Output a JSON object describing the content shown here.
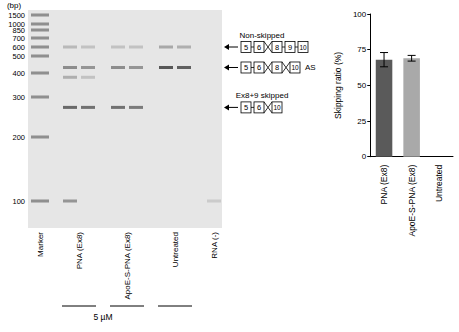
{
  "gel": {
    "size_label": "(bp)",
    "marker": [
      1500,
      1000,
      850,
      700,
      600,
      500,
      400,
      300,
      200,
      100
    ],
    "groups": [
      {
        "label": "Marker",
        "lanes": [
          {
            "bands": []
          }
        ]
      },
      {
        "label": "PNA (Ex8)",
        "dose": "5 µM",
        "lanes": [
          {
            "bands": [
              {
                "bp": 600,
                "intensity": 0.25
              },
              {
                "bp": 430,
                "intensity": 0.5
              },
              {
                "bp": 380,
                "intensity": 0.3
              },
              {
                "bp": 270,
                "intensity": 0.7
              },
              {
                "bp": 100,
                "intensity": 0.45
              }
            ]
          },
          {
            "bands": [
              {
                "bp": 600,
                "intensity": 0.2
              },
              {
                "bp": 430,
                "intensity": 0.45
              },
              {
                "bp": 380,
                "intensity": 0.2
              },
              {
                "bp": 270,
                "intensity": 0.65
              }
            ]
          }
        ]
      },
      {
        "label": "ApoE-S-PNA (Ex8)",
        "dose": "5 µM",
        "lanes": [
          {
            "bands": [
              {
                "bp": 600,
                "intensity": 0.2
              },
              {
                "bp": 430,
                "intensity": 0.5
              },
              {
                "bp": 270,
                "intensity": 0.65
              }
            ]
          },
          {
            "bands": [
              {
                "bp": 600,
                "intensity": 0.2
              },
              {
                "bp": 430,
                "intensity": 0.45
              },
              {
                "bp": 270,
                "intensity": 0.6
              }
            ]
          }
        ]
      },
      {
        "label": "Untreated",
        "lanes": [
          {
            "bands": [
              {
                "bp": 600,
                "intensity": 0.35
              },
              {
                "bp": 430,
                "intensity": 0.8
              }
            ]
          },
          {
            "bands": [
              {
                "bp": 600,
                "intensity": 0.3
              },
              {
                "bp": 430,
                "intensity": 0.75
              }
            ]
          }
        ]
      },
      {
        "label": "RNA (-)",
        "lanes": [
          {
            "bands": [
              {
                "bp": 100,
                "intensity": 0.15
              }
            ]
          }
        ]
      }
    ],
    "products": [
      {
        "name": "Non-skipped",
        "exons": [
          "5",
          "6",
          "8",
          "9",
          "10"
        ],
        "bp": 600
      },
      {
        "name": "AS",
        "exons": [
          "5",
          "6",
          "8",
          "10"
        ],
        "bp": 430
      },
      {
        "name": "Ex8+9 skipped",
        "exons": [
          "5",
          "6",
          "10"
        ],
        "bp": 270
      }
    ]
  },
  "chart_data": {
    "type": "bar",
    "categories": [
      "PNA (Ex8)",
      "ApoE-S-PNA (Ex8)",
      "Untreated"
    ],
    "values": [
      68,
      69,
      0
    ],
    "errors": [
      5,
      2,
      0
    ],
    "colors": [
      "#5a5a5a",
      "#a9a9a9",
      "#222222"
    ],
    "ylabel": "Skipping ratio (%)",
    "ylim": [
      0,
      100
    ],
    "yticks": [
      0,
      25,
      50,
      75,
      100
    ]
  }
}
